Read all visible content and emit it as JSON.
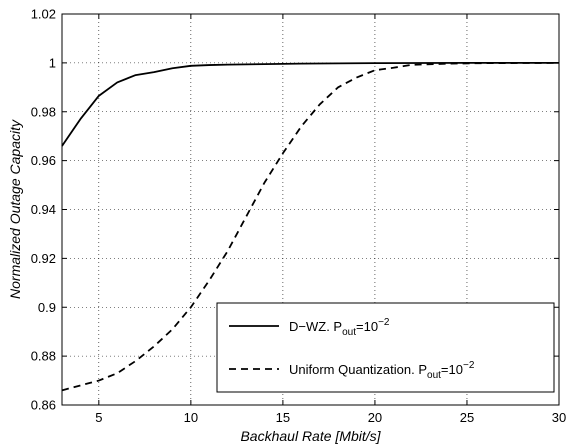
{
  "chart_data": {
    "type": "line",
    "xlabel": "Backhaul Rate [Mbit/s]",
    "ylabel": "Normalized Outage Capacity",
    "xlim": [
      3,
      30
    ],
    "ylim": [
      0.86,
      1.02
    ],
    "xticks": [
      5,
      10,
      15,
      20,
      25,
      30
    ],
    "yticks": [
      0.86,
      0.88,
      0.9,
      0.92,
      0.94,
      0.96,
      0.98,
      1,
      1.02
    ],
    "xtick_labels": [
      "5",
      "10",
      "15",
      "20",
      "25",
      "30"
    ],
    "ytick_labels": [
      "0.86",
      "0.88",
      "0.9",
      "0.92",
      "0.94",
      "0.96",
      "0.98",
      "1",
      "1.02"
    ],
    "grid": true,
    "legend_placement": "lower-right",
    "series": [
      {
        "name": "D−WZ. P",
        "name_sub": "out",
        "name_eq": "=10",
        "name_sup": "−2",
        "style": "solid",
        "color": "#000000",
        "x": [
          3,
          4,
          5,
          6,
          7,
          8,
          9,
          10,
          11,
          12,
          14,
          16,
          20,
          25,
          30
        ],
        "y": [
          0.966,
          0.977,
          0.9865,
          0.992,
          0.995,
          0.9962,
          0.9978,
          0.9988,
          0.9991,
          0.9993,
          0.9995,
          0.9997,
          0.9999,
          1.0,
          1.0
        ]
      },
      {
        "name": "Uniform Quantization. P",
        "name_sub": "out",
        "name_eq": "=10",
        "name_sup": "−2",
        "style": "dashed",
        "color": "#000000",
        "x": [
          3,
          4,
          5,
          6,
          7,
          8,
          9,
          10,
          11,
          12,
          13,
          14,
          15,
          16,
          17,
          18,
          19,
          20,
          21,
          22,
          24,
          26,
          30
        ],
        "y": [
          0.866,
          0.868,
          0.87,
          0.873,
          0.878,
          0.884,
          0.891,
          0.9,
          0.911,
          0.923,
          0.937,
          0.951,
          0.963,
          0.974,
          0.983,
          0.99,
          0.994,
          0.997,
          0.998,
          0.9992,
          0.9997,
          0.9999,
          1.0
        ]
      }
    ]
  }
}
